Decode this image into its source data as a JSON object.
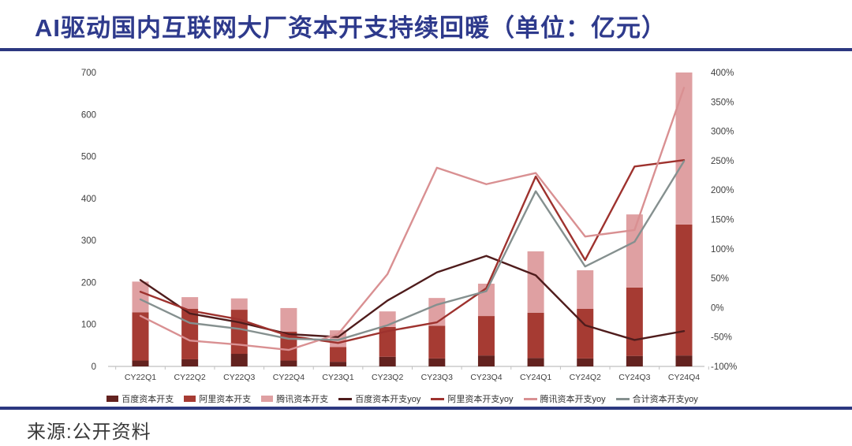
{
  "title": "AI驱动国内互联网大厂资本开支持续回暖（单位：亿元）",
  "source": "来源:公开资料",
  "accent_color": "#2c3880",
  "chart_data": {
    "type": "bar",
    "subtype": "stacked-bar-with-lines",
    "title": "AI驱动国内互联网大厂资本开支持续回暖（单位：亿元）",
    "categories": [
      "CY22Q1",
      "CY22Q2",
      "CY22Q3",
      "CY22Q4",
      "CY23Q1",
      "CY23Q2",
      "CY23Q3",
      "CY23Q4",
      "CY24Q1",
      "CY24Q2",
      "CY24Q3",
      "CY24Q4"
    ],
    "bar_series": [
      {
        "name": "百度资本开支",
        "color": "#63221f",
        "values": [
          14,
          17,
          30,
          14,
          11,
          23,
          19,
          26,
          20,
          19,
          25,
          26
        ]
      },
      {
        "name": "阿里资本开支",
        "color": "#a63b33",
        "values": [
          115,
          120,
          105,
          69,
          35,
          71,
          78,
          94,
          108,
          118,
          163,
          312
        ]
      },
      {
        "name": "腾讯资本开支",
        "color": "#dfa0a2",
        "values": [
          73,
          28,
          27,
          56,
          40,
          37,
          66,
          77,
          146,
          92,
          174,
          362
        ]
      }
    ],
    "line_series": [
      {
        "name": "百度资本开支yoy",
        "color": "#4f1c1c",
        "values": [
          47,
          -10,
          -25,
          -45,
          -50,
          12,
          60,
          88,
          55,
          -30,
          -55,
          -40
        ]
      },
      {
        "name": "阿里资本开支yoy",
        "color": "#9e322e",
        "values": [
          27,
          -5,
          -20,
          -48,
          -60,
          -40,
          -25,
          33,
          223,
          81,
          240,
          251
        ]
      },
      {
        "name": "腾讯资本开支yoy",
        "color": "#d99092",
        "values": [
          -14,
          -56,
          -63,
          -72,
          -45,
          57,
          238,
          210,
          229,
          121,
          132,
          374
        ]
      },
      {
        "name": "合计资本开支yoy",
        "color": "#85908f",
        "values": [
          14,
          -26,
          -36,
          -53,
          -55,
          -30,
          5,
          28,
          198,
          70,
          112,
          249
        ]
      }
    ],
    "left_axis": {
      "min": 0,
      "max": 700,
      "step": 100
    },
    "right_axis": {
      "min": -100,
      "max": 400,
      "step": 50,
      "suffix": "%"
    },
    "grid": false,
    "legend_position": "bottom",
    "axis_color": "#c0c0c0"
  }
}
